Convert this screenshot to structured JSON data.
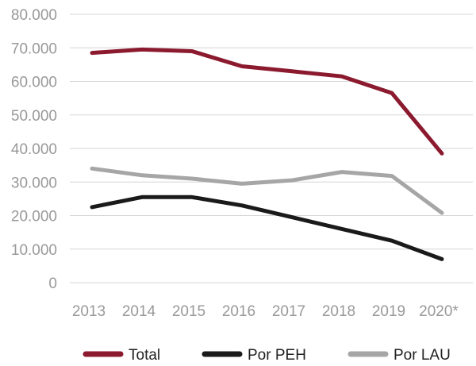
{
  "chart_data": {
    "type": "line",
    "title": "",
    "xlabel": "",
    "ylabel": "",
    "ylim": [
      0,
      80000
    ],
    "grid": true,
    "legend_position": "bottom",
    "categories": [
      "2013",
      "2014",
      "2015",
      "2016",
      "2017",
      "2018",
      "2019",
      "2020*"
    ],
    "y_ticks": [
      0,
      10000,
      20000,
      30000,
      40000,
      50000,
      60000,
      70000,
      80000
    ],
    "y_tick_labels": [
      "0",
      "10.000",
      "20.000",
      "30.000",
      "40.000",
      "50.000",
      "60.000",
      "70.000",
      "80.000"
    ],
    "series": [
      {
        "name": "Total",
        "color": "#8b1a2f",
        "values": [
          68500,
          69500,
          69000,
          64500,
          63000,
          61500,
          56500,
          38500
        ]
      },
      {
        "name": "Por PEH",
        "color": "#1a1a1a",
        "values": [
          22500,
          25500,
          25500,
          23000,
          19500,
          16000,
          12500,
          7000
        ]
      },
      {
        "name": "Por LAU",
        "color": "#a6a6a6",
        "values": [
          34000,
          32000,
          31000,
          29500,
          30500,
          33000,
          31800,
          20800
        ]
      }
    ]
  }
}
